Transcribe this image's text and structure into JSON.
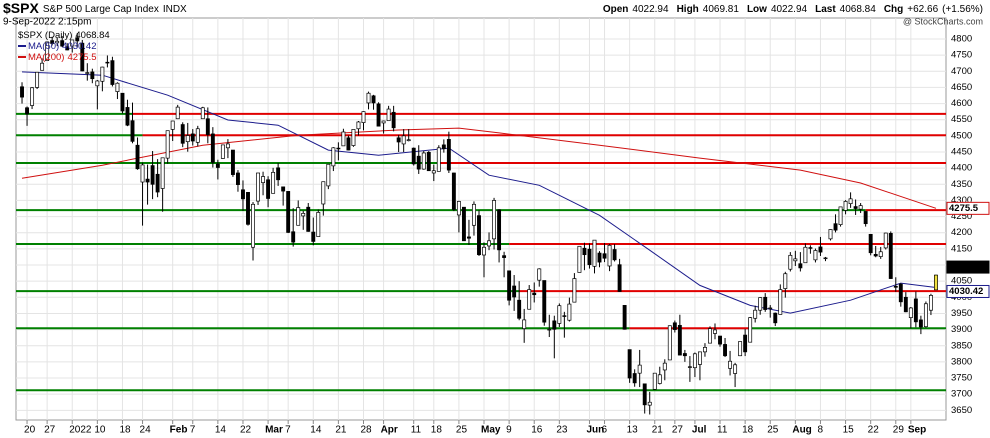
{
  "chart_data": {
    "type": "candlestick",
    "title": "$SPX",
    "subtitle": "S&P 500 Large Cap Index",
    "exchange": "INDX",
    "date": "9-Sep-2022 2:15pm",
    "watermark": "@ StockCharts.com",
    "quote_labels": [
      "Open",
      "High",
      "Low",
      "Last",
      "Chg"
    ],
    "change": "+62.66",
    "change_pct": "(+1.56%)",
    "series_name": "$SPX (Daily)",
    "up_color": "#ffffff",
    "down_color": "#000000",
    "last_color": "#f0e040",
    "ohlc": [
      [
        4652,
        4666,
        4600,
        4620
      ],
      [
        4587,
        4591,
        4531,
        4568
      ],
      [
        4594,
        4651,
        4583,
        4649
      ],
      [
        4650,
        4698,
        4645,
        4697
      ],
      [
        4703,
        4740,
        4703,
        4725
      ],
      [
        4733,
        4791,
        4733,
        4791
      ],
      [
        4795,
        4807,
        4780,
        4786
      ],
      [
        4788,
        4804,
        4778,
        4793
      ],
      [
        4795,
        4809,
        4775,
        4778
      ],
      [
        4776,
        4787,
        4765,
        4766
      ],
      [
        4778,
        4797,
        4758,
        4797
      ],
      [
        4804,
        4818,
        4774,
        4794
      ],
      [
        4787,
        4797,
        4700,
        4701
      ],
      [
        4693,
        4725,
        4671,
        4696
      ],
      [
        4698,
        4708,
        4663,
        4677
      ],
      [
        4655,
        4673,
        4582,
        4670
      ],
      [
        4669,
        4714,
        4638,
        4713
      ],
      [
        4728,
        4749,
        4712,
        4726
      ],
      [
        4733,
        4745,
        4653,
        4659
      ],
      [
        4637,
        4666,
        4614,
        4663
      ],
      [
        4632,
        4632,
        4569,
        4577
      ],
      [
        4588,
        4612,
        4530,
        4533
      ],
      [
        4547,
        4603,
        4477,
        4483
      ],
      [
        4471,
        4495,
        4395,
        4398
      ],
      [
        4357,
        4417,
        4222,
        4410
      ],
      [
        4366,
        4411,
        4287,
        4357
      ],
      [
        4408,
        4453,
        4304,
        4350
      ],
      [
        4381,
        4428,
        4310,
        4326
      ],
      [
        4337,
        4432,
        4265,
        4432
      ],
      [
        4431,
        4516,
        4414,
        4516
      ],
      [
        4520,
        4546,
        4484,
        4546
      ],
      [
        4553,
        4596,
        4552,
        4589
      ],
      [
        4535,
        4542,
        4465,
        4477
      ],
      [
        4482,
        4540,
        4451,
        4501
      ],
      [
        4506,
        4521,
        4470,
        4484
      ],
      [
        4480,
        4531,
        4467,
        4522
      ],
      [
        4553,
        4590,
        4553,
        4587
      ],
      [
        4553,
        4588,
        4477,
        4504
      ],
      [
        4506,
        4527,
        4402,
        4418
      ],
      [
        4413,
        4426,
        4365,
        4402
      ],
      [
        4430,
        4472,
        4429,
        4472
      ],
      [
        4463,
        4490,
        4431,
        4475
      ],
      [
        4456,
        4456,
        4373,
        4380
      ],
      [
        4385,
        4394,
        4327,
        4349
      ],
      [
        4333,
        4362,
        4268,
        4305
      ],
      [
        4325,
        4326,
        4222,
        4226
      ],
      [
        4155,
        4295,
        4114,
        4288
      ],
      [
        4298,
        4385,
        4286,
        4385
      ],
      [
        4355,
        4389,
        4316,
        4374
      ],
      [
        4364,
        4375,
        4279,
        4306
      ],
      [
        4322,
        4401,
        4322,
        4387
      ],
      [
        4401,
        4416,
        4345,
        4364
      ],
      [
        4342,
        4343,
        4284,
        4329
      ],
      [
        4328,
        4328,
        4199,
        4201
      ],
      [
        4203,
        4276,
        4157,
        4171
      ],
      [
        4223,
        4300,
        4223,
        4278
      ],
      [
        4252,
        4268,
        4209,
        4260
      ],
      [
        4279,
        4292,
        4203,
        4204
      ],
      [
        4202,
        4247,
        4161,
        4173
      ],
      [
        4188,
        4272,
        4188,
        4263
      ],
      [
        4289,
        4358,
        4253,
        4358
      ],
      [
        4345,
        4412,
        4335,
        4412
      ],
      [
        4407,
        4465,
        4391,
        4463
      ],
      [
        4462,
        4480,
        4424,
        4461
      ],
      [
        4469,
        4522,
        4469,
        4512
      ],
      [
        4494,
        4501,
        4455,
        4456
      ],
      [
        4470,
        4520,
        4466,
        4520
      ],
      [
        4522,
        4546,
        4501,
        4543
      ],
      [
        4541,
        4576,
        4517,
        4575
      ],
      [
        4602,
        4637,
        4582,
        4632
      ],
      [
        4624,
        4627,
        4581,
        4602
      ],
      [
        4599,
        4604,
        4530,
        4530
      ],
      [
        4540,
        4547,
        4507,
        4546
      ],
      [
        4547,
        4593,
        4546,
        4583
      ],
      [
        4573,
        4593,
        4514,
        4525
      ],
      [
        4494,
        4503,
        4450,
        4481
      ],
      [
        4475,
        4521,
        4450,
        4500
      ],
      [
        4485,
        4521,
        4483,
        4488
      ],
      [
        4462,
        4464,
        4408,
        4413
      ],
      [
        4437,
        4471,
        4382,
        4397
      ],
      [
        4397,
        4453,
        4395,
        4447
      ],
      [
        4449,
        4453,
        4392,
        4392
      ],
      [
        4385,
        4411,
        4360,
        4392
      ],
      [
        4390,
        4471,
        4390,
        4463
      ],
      [
        4472,
        4489,
        4448,
        4460
      ],
      [
        4489,
        4513,
        4385,
        4394
      ],
      [
        4385,
        4386,
        4267,
        4272
      ],
      [
        4255,
        4299,
        4201,
        4297
      ],
      [
        4279,
        4279,
        4175,
        4175
      ],
      [
        4187,
        4240,
        4162,
        4183
      ],
      [
        4223,
        4297,
        4191,
        4288
      ],
      [
        4253,
        4269,
        4128,
        4132
      ],
      [
        4131,
        4170,
        4062,
        4155
      ],
      [
        4159,
        4201,
        4146,
        4175
      ],
      [
        4181,
        4308,
        4148,
        4300
      ],
      [
        4271,
        4273,
        4108,
        4147
      ],
      [
        4129,
        4141,
        4062,
        4123
      ],
      [
        4082,
        4082,
        3975,
        3991
      ],
      [
        4035,
        4069,
        3958,
        4001
      ],
      [
        3991,
        4050,
        3929,
        3935
      ],
      [
        3903,
        3964,
        3859,
        3930
      ],
      [
        3963,
        4038,
        3963,
        4024
      ],
      [
        4013,
        4046,
        3984,
        4008
      ],
      [
        4053,
        4090,
        4033,
        4088
      ],
      [
        4052,
        4052,
        3912,
        3923
      ],
      [
        3900,
        3946,
        3877,
        3901
      ],
      [
        3927,
        3943,
        3811,
        3901
      ],
      [
        3919,
        3981,
        3908,
        3974
      ],
      [
        3943,
        3955,
        3875,
        3941
      ],
      [
        3929,
        3999,
        3925,
        3979
      ],
      [
        3985,
        4075,
        3985,
        4058
      ],
      [
        4077,
        4158,
        4077,
        4158
      ],
      [
        4152,
        4169,
        4084,
        4132
      ],
      [
        4149,
        4167,
        4089,
        4101
      ],
      [
        4096,
        4177,
        4074,
        4177
      ],
      [
        4137,
        4143,
        4093,
        4109
      ],
      [
        4135,
        4168,
        4109,
        4121
      ],
      [
        4097,
        4165,
        4081,
        4161
      ],
      [
        4148,
        4165,
        4111,
        4116
      ],
      [
        4101,
        4119,
        4017,
        4018
      ],
      [
        3975,
        3975,
        3900,
        3901
      ],
      [
        3838,
        3838,
        3735,
        3750
      ],
      [
        3764,
        3777,
        3723,
        3735
      ],
      [
        3765,
        3837,
        3722,
        3790
      ],
      [
        3732,
        3732,
        3640,
        3667
      ],
      [
        3666,
        3707,
        3637,
        3675
      ],
      [
        3715,
        3765,
        3713,
        3765
      ],
      [
        3733,
        3785,
        3730,
        3760
      ],
      [
        3775,
        3808,
        3743,
        3796
      ],
      [
        3806,
        3913,
        3806,
        3912
      ],
      [
        3921,
        3928,
        3891,
        3900
      ],
      [
        3913,
        3946,
        3820,
        3821
      ],
      [
        3826,
        3837,
        3800,
        3819
      ],
      [
        3785,
        3818,
        3738,
        3785
      ],
      [
        3782,
        3829,
        3753,
        3825
      ],
      [
        3792,
        3832,
        3743,
        3831
      ],
      [
        3831,
        3858,
        3816,
        3845
      ],
      [
        3858,
        3910,
        3858,
        3903
      ],
      [
        3888,
        3919,
        3870,
        3899
      ],
      [
        3880,
        3880,
        3847,
        3855
      ],
      [
        3854,
        3874,
        3815,
        3819
      ],
      [
        3780,
        3834,
        3758,
        3802
      ],
      [
        3764,
        3797,
        3722,
        3791
      ],
      [
        3819,
        3863,
        3818,
        3863
      ],
      [
        3883,
        3902,
        3818,
        3831
      ],
      [
        3861,
        3939,
        3861,
        3937
      ],
      [
        3935,
        3974,
        3922,
        3960
      ],
      [
        3960,
        4000,
        3946,
        3999
      ],
      [
        4000,
        4013,
        3955,
        3962
      ],
      [
        3966,
        3976,
        3937,
        3967
      ],
      [
        3951,
        3953,
        3911,
        3921
      ],
      [
        3947,
        4040,
        3947,
        4024
      ],
      [
        4027,
        4079,
        3999,
        4073
      ],
      [
        4087,
        4140,
        4080,
        4130
      ],
      [
        4113,
        4144,
        4097,
        4119
      ],
      [
        4104,
        4140,
        4080,
        4091
      ],
      [
        4107,
        4167,
        4107,
        4155
      ],
      [
        4154,
        4161,
        4135,
        4152
      ],
      [
        4116,
        4151,
        4108,
        4145
      ],
      [
        4156,
        4187,
        4128,
        4140
      ],
      [
        4122,
        4125,
        4112,
        4122
      ],
      [
        4181,
        4211,
        4176,
        4210
      ],
      [
        4228,
        4257,
        4201,
        4208
      ],
      [
        4225,
        4280,
        4219,
        4280
      ],
      [
        4269,
        4301,
        4257,
        4297
      ],
      [
        4290,
        4325,
        4277,
        4305
      ],
      [
        4281,
        4303,
        4255,
        4275
      ],
      [
        4273,
        4292,
        4261,
        4284
      ],
      [
        4266,
        4266,
        4219,
        4228
      ],
      [
        4195,
        4196,
        4130,
        4138
      ],
      [
        4133,
        4159,
        4124,
        4128
      ],
      [
        4126,
        4156,
        4119,
        4141
      ],
      [
        4153,
        4200,
        4148,
        4199
      ],
      [
        4198,
        4204,
        4057,
        4058
      ],
      [
        4034,
        4062,
        4017,
        4031
      ],
      [
        4041,
        4044,
        3971,
        3986
      ],
      [
        4000,
        4016,
        3954,
        3955
      ],
      [
        3937,
        3970,
        3904,
        3967
      ],
      [
        3995,
        4018,
        3907,
        3924
      ],
      [
        3930,
        3943,
        3886,
        3908
      ],
      [
        3909,
        3987,
        3906,
        3980
      ],
      [
        3960,
        4011,
        3945,
        4006
      ],
      [
        4022.94,
        4069.81,
        4022.94,
        4068.84
      ]
    ],
    "ma": [
      {
        "name": "MA(50)",
        "color": "#1c1c8c",
        "x": [
          0,
          16,
          29,
          41,
          51,
          61,
          71,
          85,
          93,
          103,
          115,
          125,
          135,
          145,
          153,
          165,
          175,
          182
        ],
        "values": [
          4698,
          4688,
          4626,
          4549,
          4533,
          4456,
          4440,
          4462,
          4378,
          4347,
          4254,
          4146,
          4037,
          3975,
          3951,
          3991,
          4044,
          4030.42
        ]
      },
      {
        "name": "MA(200)",
        "color": "#d01010",
        "x": [
          0,
          16,
          36,
          55,
          75,
          87,
          95,
          115,
          135,
          155,
          167,
          182
        ],
        "values": [
          4369,
          4409,
          4471,
          4502,
          4518,
          4524,
          4509,
          4471,
          4431,
          4394,
          4354,
          4275.5
        ]
      }
    ],
    "levels": [
      {
        "value": 4568,
        "segments": [
          {
            "from": -1.2,
            "to": 22,
            "color": "#008000"
          },
          {
            "from": 22,
            "to": 184,
            "color": "#e00000"
          }
        ]
      },
      {
        "value": 4502,
        "segments": [
          {
            "from": -1.2,
            "to": 24,
            "color": "#008000"
          },
          {
            "from": 24,
            "to": 184,
            "color": "#e00000"
          }
        ]
      },
      {
        "value": 4416,
        "segments": [
          {
            "from": -1.2,
            "to": 83,
            "color": "#008000"
          },
          {
            "from": 83,
            "to": 184,
            "color": "#e00000"
          }
        ]
      },
      {
        "value": 4270,
        "segments": [
          {
            "from": -1.2,
            "to": 168,
            "color": "#008000"
          },
          {
            "from": 168,
            "to": 184,
            "color": "#e00000"
          }
        ]
      },
      {
        "value": 4165,
        "segments": [
          {
            "from": -1.2,
            "to": 97,
            "color": "#008000"
          },
          {
            "from": 97,
            "to": 184,
            "color": "#e00000"
          }
        ]
      },
      {
        "value": 4019,
        "segments": [
          {
            "from": -1.2,
            "to": 99,
            "color": "#008000"
          },
          {
            "from": 99,
            "to": 184,
            "color": "#e00000"
          }
        ]
      },
      {
        "value": 3904,
        "segments": [
          {
            "from": -1.2,
            "to": 121,
            "color": "#008000"
          },
          {
            "from": 121,
            "to": 145,
            "color": "#e00000"
          },
          {
            "from": 145,
            "to": 184,
            "color": "#008000"
          }
        ]
      },
      {
        "value": 3712,
        "segments": [
          {
            "from": -1.2,
            "to": 184,
            "color": "#008000"
          }
        ]
      }
    ],
    "xlim": [
      -1.2,
      184
    ],
    "xticks": [
      {
        "value": 1,
        "label": "20"
      },
      {
        "value": 5,
        "label": "27"
      },
      {
        "value": 10,
        "label": "2022"
      },
      {
        "value": 15,
        "label": "10"
      },
      {
        "value": 20,
        "label": "18"
      },
      {
        "value": 24,
        "label": "24"
      },
      {
        "value": 30,
        "label": "Feb"
      },
      {
        "value": 34,
        "label": "7"
      },
      {
        "value": 39,
        "label": "14"
      },
      {
        "value": 44,
        "label": "22"
      },
      {
        "value": 49,
        "label": "Mar"
      },
      {
        "value": 53,
        "label": "7"
      },
      {
        "value": 58,
        "label": "14"
      },
      {
        "value": 63,
        "label": "21"
      },
      {
        "value": 68,
        "label": "28"
      },
      {
        "value": 72,
        "label": "Apr"
      },
      {
        "value": 78,
        "label": "11"
      },
      {
        "value": 82,
        "label": "18"
      },
      {
        "value": 87,
        "label": "25"
      },
      {
        "value": 92,
        "label": "May"
      },
      {
        "value": 97,
        "label": "9"
      },
      {
        "value": 102,
        "label": "16"
      },
      {
        "value": 107,
        "label": "23"
      },
      {
        "value": 113,
        "label": "Jun"
      },
      {
        "value": 116,
        "label": "6"
      },
      {
        "value": 121,
        "label": "13"
      },
      {
        "value": 126,
        "label": "21"
      },
      {
        "value": 130,
        "label": "27"
      },
      {
        "value": 134,
        "label": "Jul"
      },
      {
        "value": 139,
        "label": "11"
      },
      {
        "value": 144,
        "label": "18"
      },
      {
        "value": 149,
        "label": "25"
      },
      {
        "value": 154,
        "label": "Aug"
      },
      {
        "value": 159,
        "label": "8"
      },
      {
        "value": 164,
        "label": "15"
      },
      {
        "value": 169,
        "label": "22"
      },
      {
        "value": 174,
        "label": "29"
      },
      {
        "value": 177,
        "label": "Sep"
      }
    ],
    "ylim": [
      3620,
      4865
    ],
    "yticks": [
      3650,
      3700,
      3750,
      3800,
      3850,
      3900,
      3950,
      4000,
      4050,
      4100,
      4150,
      4200,
      4250,
      4300,
      4350,
      4400,
      4450,
      4500,
      4550,
      4600,
      4650,
      4700,
      4750,
      4800
    ],
    "grid": true
  }
}
